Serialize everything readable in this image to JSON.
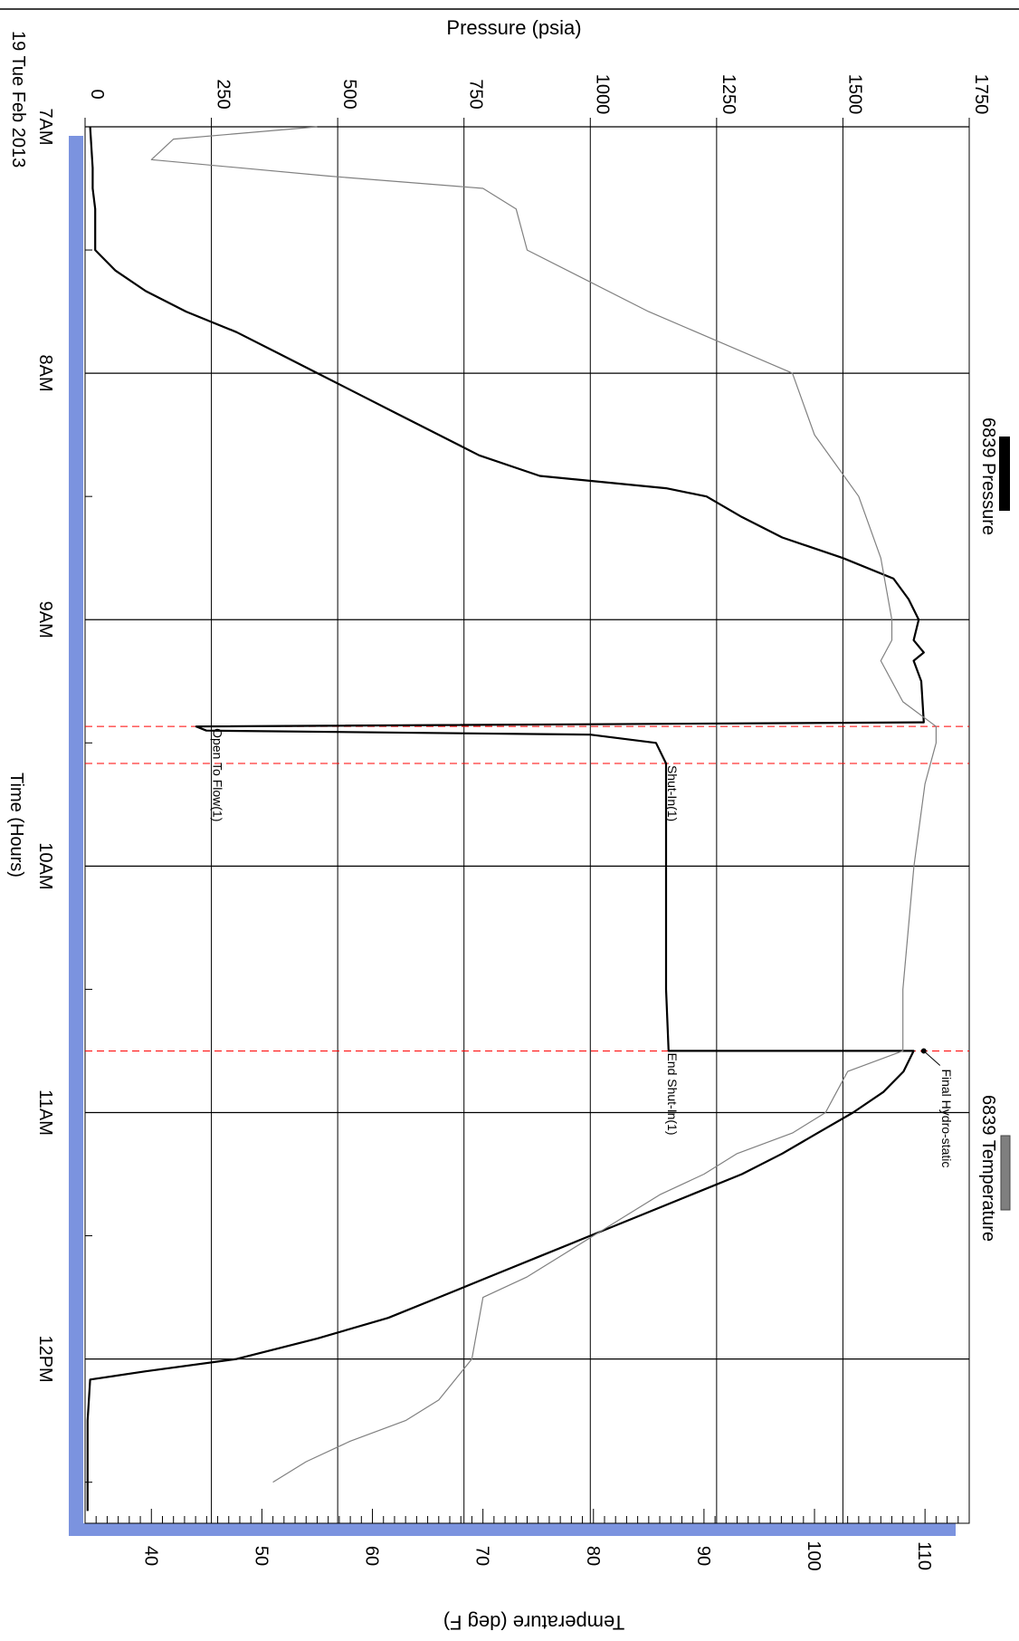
{
  "chart_data": {
    "type": "line",
    "date_label": "19 Tue Feb 2013",
    "xlabel": "Time (Hours)",
    "y1label": "Pressure (psia)",
    "y2label": "Temperature (deg F)",
    "xlim": [
      "07:00",
      "12:40"
    ],
    "y1lim": [
      0,
      1750
    ],
    "y2lim": [
      34,
      114
    ],
    "x_ticks": [
      {
        "t": "07:00",
        "label": "7AM"
      },
      {
        "t": "08:00",
        "label": "8AM"
      },
      {
        "t": "09:00",
        "label": "9AM"
      },
      {
        "t": "10:00",
        "label": "10AM"
      },
      {
        "t": "11:00",
        "label": "11AM"
      },
      {
        "t": "12:00",
        "label": "12PM"
      }
    ],
    "y1_ticks": [
      {
        "v": 0,
        "label": "0"
      },
      {
        "v": 250,
        "label": "250"
      },
      {
        "v": 500,
        "label": "500"
      },
      {
        "v": 750,
        "label": "750"
      },
      {
        "v": 1000,
        "label": "1000"
      },
      {
        "v": 1250,
        "label": "1250"
      },
      {
        "v": 1500,
        "label": "1500"
      },
      {
        "v": 1750,
        "label": "1750"
      }
    ],
    "y2_ticks": [
      {
        "v": 40,
        "label": "40"
      },
      {
        "v": 50,
        "label": "50"
      },
      {
        "v": 60,
        "label": "60"
      },
      {
        "v": 70,
        "label": "70"
      },
      {
        "v": 80,
        "label": "80"
      },
      {
        "v": 90,
        "label": "90"
      },
      {
        "v": 100,
        "label": "100"
      },
      {
        "v": 110,
        "label": "110"
      }
    ],
    "grid": true,
    "legend": [
      {
        "name": "6839 Pressure",
        "color": "#000000"
      },
      {
        "name": "6839 Temperature",
        "color": "#808080"
      }
    ],
    "series": [
      {
        "name": "6839 Pressure",
        "axis": "y1",
        "color": "#000000",
        "points": [
          [
            "07:00",
            10
          ],
          [
            "07:10",
            15
          ],
          [
            "07:15",
            15
          ],
          [
            "07:20",
            20
          ],
          [
            "07:30",
            20
          ],
          [
            "07:35",
            60
          ],
          [
            "07:40",
            120
          ],
          [
            "07:45",
            200
          ],
          [
            "07:50",
            300
          ],
          [
            "07:55",
            380
          ],
          [
            "08:00",
            460
          ],
          [
            "08:05",
            540
          ],
          [
            "08:10",
            620
          ],
          [
            "08:15",
            700
          ],
          [
            "08:20",
            780
          ],
          [
            "08:25",
            900
          ],
          [
            "08:28",
            1150
          ],
          [
            "08:30",
            1230
          ],
          [
            "08:35",
            1300
          ],
          [
            "08:40",
            1380
          ],
          [
            "08:45",
            1500
          ],
          [
            "08:50",
            1600
          ],
          [
            "08:55",
            1630
          ],
          [
            "09:00",
            1650
          ],
          [
            "09:05",
            1640
          ],
          [
            "09:08",
            1660
          ],
          [
            "09:10",
            1640
          ],
          [
            "09:15",
            1655
          ],
          [
            "09:25",
            1660
          ],
          [
            "09:26",
            220
          ],
          [
            "09:27",
            240
          ],
          [
            "09:28",
            1000
          ],
          [
            "09:30",
            1130
          ],
          [
            "09:35",
            1150
          ],
          [
            "10:00",
            1150
          ],
          [
            "10:30",
            1150
          ],
          [
            "10:45",
            1155
          ],
          [
            "10:45",
            1640
          ],
          [
            "10:50",
            1620
          ],
          [
            "10:55",
            1580
          ],
          [
            "11:00",
            1520
          ],
          [
            "11:05",
            1450
          ],
          [
            "11:10",
            1380
          ],
          [
            "11:15",
            1300
          ],
          [
            "11:20",
            1200
          ],
          [
            "11:25",
            1100
          ],
          [
            "11:30",
            1000
          ],
          [
            "11:35",
            900
          ],
          [
            "11:40",
            800
          ],
          [
            "11:45",
            700
          ],
          [
            "11:50",
            600
          ],
          [
            "11:55",
            460
          ],
          [
            "12:00",
            300
          ],
          [
            "12:03",
            120
          ],
          [
            "12:05",
            10
          ],
          [
            "12:15",
            5
          ],
          [
            "12:30",
            5
          ],
          [
            "12:37",
            5
          ]
        ]
      },
      {
        "name": "6839 Temperature",
        "axis": "y2",
        "color": "#808080",
        "points": [
          [
            "07:00",
            55
          ],
          [
            "07:03",
            42
          ],
          [
            "07:08",
            40
          ],
          [
            "07:12",
            56
          ],
          [
            "07:15",
            70
          ],
          [
            "07:20",
            73
          ],
          [
            "07:30",
            74
          ],
          [
            "07:45",
            85
          ],
          [
            "08:00",
            98
          ],
          [
            "08:15",
            100
          ],
          [
            "08:30",
            104
          ],
          [
            "08:45",
            106
          ],
          [
            "09:00",
            107
          ],
          [
            "09:05",
            107
          ],
          [
            "09:10",
            106
          ],
          [
            "09:20",
            108
          ],
          [
            "09:26",
            111
          ],
          [
            "09:30",
            111
          ],
          [
            "09:40",
            110
          ],
          [
            "10:00",
            109
          ],
          [
            "10:30",
            108
          ],
          [
            "10:45",
            108
          ],
          [
            "10:50",
            103
          ],
          [
            "10:55",
            102
          ],
          [
            "11:00",
            101
          ],
          [
            "11:05",
            98
          ],
          [
            "11:10",
            93
          ],
          [
            "11:15",
            90
          ],
          [
            "11:20",
            86
          ],
          [
            "11:25",
            83
          ],
          [
            "11:30",
            80
          ],
          [
            "11:35",
            77
          ],
          [
            "11:40",
            74
          ],
          [
            "11:45",
            70
          ],
          [
            "12:00",
            69
          ],
          [
            "12:10",
            66
          ],
          [
            "12:15",
            63
          ],
          [
            "12:20",
            58
          ],
          [
            "12:25",
            54
          ],
          [
            "12:30",
            51
          ]
        ]
      }
    ],
    "annotations": [
      {
        "t": "09:26",
        "label": "Open To Flow(1)",
        "color": "#ff0000",
        "text_pos_value": 250
      },
      {
        "t": "09:35",
        "label": "Shut-In(1)",
        "color": "#ff0000",
        "text_pos_value": 1150
      },
      {
        "t": "10:45",
        "label": "End Shut-In(1)",
        "color": "#ff0000",
        "text_pos_value": 1150
      }
    ],
    "point_annotations": [
      {
        "t": "10:45",
        "value": 1660,
        "label": "Final Hydro-static"
      }
    ]
  }
}
